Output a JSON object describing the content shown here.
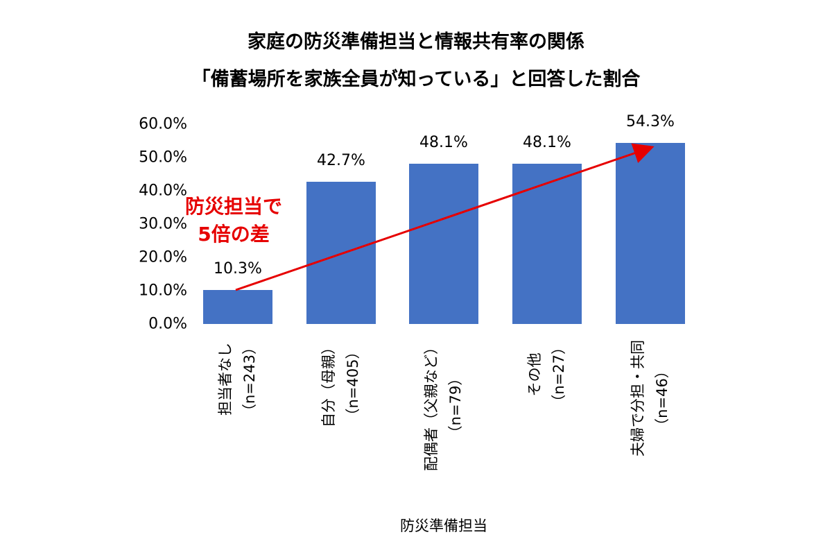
{
  "chart_data": {
    "type": "bar",
    "title": "家庭の防災準備担当と情報共有率の関係",
    "subtitle": "「備蓄場所を家族全員が知っている」と回答した割合",
    "categories": [
      {
        "name": "担当者なし",
        "n": "（n=243）"
      },
      {
        "name": "自分（母親）",
        "n": "（n=405）"
      },
      {
        "name": "配偶者（父親など）",
        "n": "（n=79）"
      },
      {
        "name": "その他",
        "n": "（n=27）"
      },
      {
        "name": "夫婦で分担・共同",
        "n": "（n=46）"
      }
    ],
    "values": [
      10.3,
      42.7,
      48.1,
      48.1,
      54.3
    ],
    "data_labels": [
      "10.3%",
      "42.7%",
      "48.1%",
      "48.1%",
      "54.3%"
    ],
    "xlabel": "防災準備担当",
    "ylabel": "",
    "ylim": [
      0,
      60
    ],
    "yticks": [
      "0.0%",
      "10.0%",
      "20.0%",
      "30.0%",
      "40.0%",
      "50.0%",
      "60.0%"
    ],
    "grid": false,
    "bar_color": "#4472C4",
    "annotation": {
      "lines": [
        "防災担当で",
        "5倍の差"
      ],
      "color": "#E60000",
      "arrow": "red arrow from first bar to last bar"
    }
  }
}
